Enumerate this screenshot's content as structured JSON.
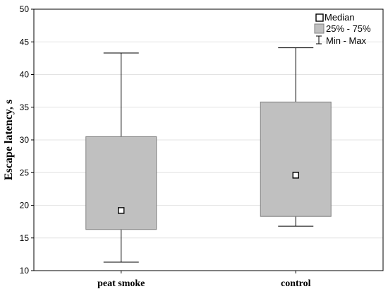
{
  "chart_data": {
    "type": "box",
    "title": "",
    "xlabel": "",
    "ylabel": "Escape latency, s",
    "ylim": [
      10,
      50
    ],
    "yticks": [
      10,
      15,
      20,
      25,
      30,
      35,
      40,
      45,
      50
    ],
    "grid": true,
    "legend_position": "top-right",
    "categories": [
      "peat smoke",
      "control"
    ],
    "boxes": [
      {
        "category": "peat smoke",
        "min": 11.3,
        "q1": 16.3,
        "median": 19.2,
        "q3": 30.5,
        "max": 43.3
      },
      {
        "category": "control",
        "min": 16.8,
        "q1": 18.3,
        "median": 24.6,
        "q3": 35.8,
        "max": 44.1
      }
    ],
    "legend": {
      "median": "Median",
      "box": "25% - 75%",
      "whisker": "Min - Max"
    },
    "colors": {
      "box_fill": "#c0c0c0",
      "box_stroke": "#808080",
      "grid": "#e3e3e3",
      "ink": "#000000"
    }
  }
}
